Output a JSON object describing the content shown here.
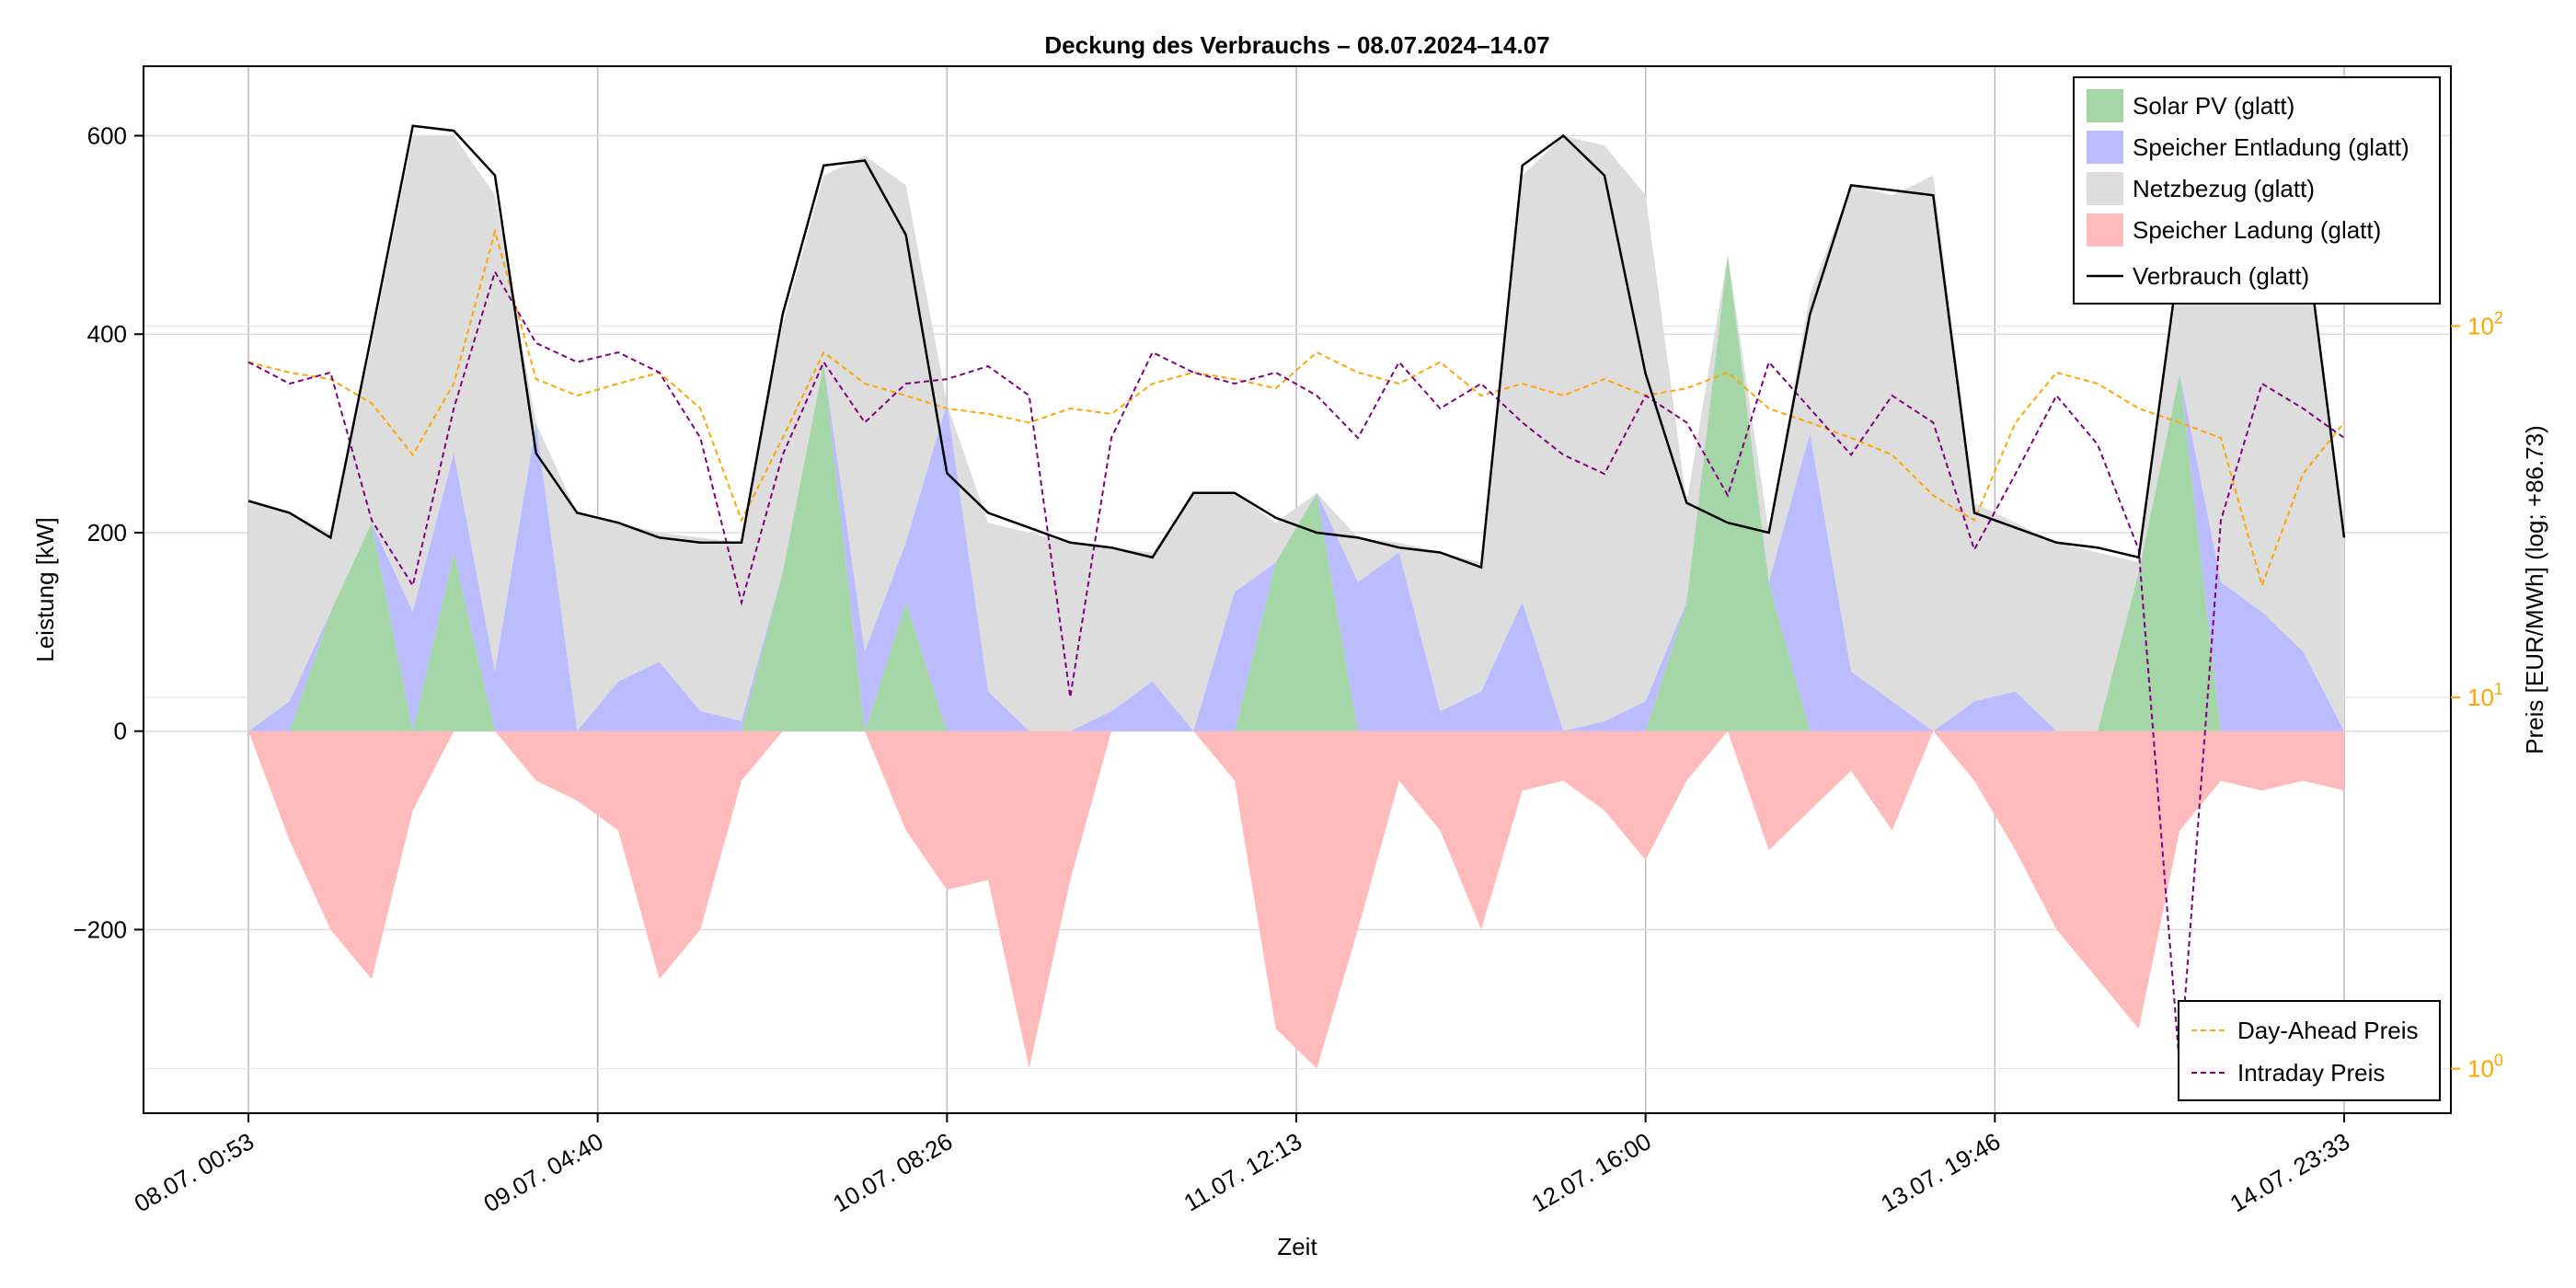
{
  "chart_data": {
    "type": "area",
    "title": "Deckung des Verbrauchs – 08.07.2024–14.07",
    "xlabel": "Zeit",
    "ylabel": "Leistung [kW]",
    "y2label": "Preis [EUR/MWh] (log; +86.73)",
    "ylim": [
      -385,
      670
    ],
    "y2lim_log10": [
      -0.12,
      2.7
    ],
    "x_ticks": [
      "08.07. 00:53",
      "09.07. 04:40",
      "10.07. 08:26",
      "11.07. 12:13",
      "12.07. 16:00",
      "13.07. 19:46",
      "14.07. 23:33"
    ],
    "y_ticks": [
      "−200",
      "0",
      "200",
      "400",
      "600"
    ],
    "y_tick_values": [
      -200,
      0,
      200,
      400,
      600
    ],
    "y2_ticks": [
      {
        "base": "10",
        "exp": "0",
        "value": 1
      },
      {
        "base": "10",
        "exp": "1",
        "value": 10
      },
      {
        "base": "10",
        "exp": "2",
        "value": 100
      }
    ],
    "x_hours": [
      0,
      3,
      6,
      9,
      12,
      15,
      18,
      21,
      24,
      27,
      30,
      33,
      36,
      39,
      42,
      45,
      48,
      51,
      54,
      57,
      60,
      63,
      66,
      69,
      72,
      75,
      78,
      81,
      84,
      87,
      90,
      93,
      96,
      99,
      102,
      105,
      108,
      111,
      114,
      117,
      120,
      123,
      126,
      129,
      132,
      135,
      138,
      141,
      144,
      147,
      150,
      153
    ],
    "series": [
      {
        "name": "Solar PV (glatt)",
        "kind": "area",
        "color": "#a5d6a7",
        "values": [
          0,
          0,
          120,
          210,
          0,
          180,
          0,
          0,
          0,
          0,
          0,
          0,
          0,
          160,
          370,
          0,
          130,
          0,
          0,
          0,
          0,
          0,
          0,
          0,
          0,
          170,
          240,
          0,
          0,
          0,
          0,
          0,
          0,
          0,
          0,
          130,
          480,
          150,
          0,
          0,
          0,
          0,
          0,
          0,
          0,
          0,
          160,
          360,
          0,
          0,
          0,
          0
        ]
      },
      {
        "name": "Speicher Entladung (glatt)",
        "kind": "area",
        "color": "#bbbbff",
        "values": [
          0,
          30,
          0,
          0,
          120,
          100,
          60,
          310,
          0,
          50,
          70,
          20,
          10,
          0,
          0,
          80,
          60,
          330,
          40,
          0,
          0,
          20,
          50,
          0,
          140,
          0,
          0,
          150,
          180,
          20,
          40,
          130,
          0,
          10,
          30,
          0,
          0,
          0,
          300,
          60,
          30,
          0,
          30,
          40,
          0,
          0,
          0,
          0,
          150,
          120,
          80,
          0
        ]
      },
      {
        "name": "Netzbezug (glatt)",
        "kind": "area",
        "color": "#dddddd",
        "values": [
          230,
          220,
          200,
          390,
          600,
          600,
          540,
          250,
          220,
          210,
          200,
          195,
          190,
          410,
          560,
          580,
          550,
          240,
          210,
          200,
          190,
          185,
          180,
          240,
          240,
          210,
          200,
          195,
          190,
          180,
          170,
          560,
          600,
          590,
          540,
          230,
          210,
          200,
          440,
          550,
          540,
          560,
          230,
          210,
          190,
          180,
          170,
          470,
          540,
          530,
          520,
          200
        ]
      },
      {
        "name": "Speicher Ladung (glatt)",
        "kind": "area",
        "color": "#ffbbbb",
        "values": [
          0,
          -110,
          -200,
          -250,
          -80,
          0,
          0,
          -50,
          -70,
          -100,
          -250,
          -200,
          -50,
          0,
          0,
          0,
          -100,
          -160,
          -150,
          -340,
          -150,
          0,
          0,
          0,
          -50,
          -300,
          -340,
          -200,
          -50,
          -100,
          -200,
          -60,
          -50,
          -80,
          -130,
          -50,
          0,
          -120,
          -80,
          -40,
          -100,
          0,
          -50,
          -120,
          -200,
          -250,
          -300,
          -100,
          -50,
          -60,
          -50,
          -60
        ]
      },
      {
        "name": "Verbrauch (glatt)",
        "kind": "line",
        "color": "#000000",
        "values": [
          232,
          220,
          195,
          400,
          610,
          605,
          560,
          280,
          220,
          210,
          195,
          190,
          190,
          420,
          570,
          575,
          500,
          260,
          220,
          205,
          190,
          185,
          175,
          240,
          240,
          215,
          200,
          195,
          185,
          180,
          165,
          570,
          600,
          560,
          360,
          230,
          210,
          200,
          420,
          550,
          545,
          540,
          220,
          205,
          190,
          185,
          175,
          480,
          545,
          535,
          520,
          195
        ]
      },
      {
        "name": "Day-Ahead Preis",
        "kind": "price",
        "color": "#ffa500",
        "values": [
          80,
          75,
          72,
          62,
          45,
          70,
          180,
          72,
          65,
          70,
          75,
          60,
          30,
          50,
          85,
          70,
          65,
          60,
          58,
          55,
          60,
          58,
          70,
          75,
          72,
          68,
          85,
          75,
          70,
          80,
          65,
          70,
          65,
          72,
          65,
          68,
          75,
          60,
          55,
          50,
          45,
          35,
          30,
          55,
          75,
          70,
          60,
          55,
          50,
          20,
          40,
          55
        ]
      },
      {
        "name": "Intraday Preis",
        "kind": "price",
        "color": "#800080",
        "values": [
          80,
          70,
          75,
          30,
          20,
          60,
          140,
          90,
          80,
          85,
          75,
          50,
          18,
          45,
          80,
          55,
          70,
          72,
          78,
          65,
          10,
          50,
          85,
          75,
          70,
          75,
          65,
          50,
          80,
          60,
          70,
          55,
          45,
          40,
          65,
          55,
          35,
          80,
          60,
          45,
          65,
          55,
          25,
          40,
          65,
          48,
          25,
          1,
          30,
          70,
          60,
          50
        ]
      }
    ],
    "legend_top": [
      "Solar PV (glatt)",
      "Speicher Entladung (glatt)",
      "Netzbezug (glatt)",
      "Speicher Ladung (glatt)",
      "Verbrauch (glatt)"
    ],
    "legend_bottom": [
      "Day-Ahead Preis",
      "Intraday Preis"
    ],
    "legend_top_position": "top-right",
    "legend_bottom_position": "bottom-right",
    "grid": true,
    "axis2_color": "#ffa500"
  }
}
